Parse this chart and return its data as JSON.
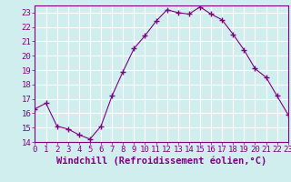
{
  "x": [
    0,
    1,
    2,
    3,
    4,
    5,
    6,
    7,
    8,
    9,
    10,
    11,
    12,
    13,
    14,
    15,
    16,
    17,
    18,
    19,
    20,
    21,
    22,
    23
  ],
  "y": [
    16.3,
    16.7,
    15.1,
    14.9,
    14.5,
    14.2,
    15.1,
    17.2,
    18.9,
    20.5,
    21.4,
    22.4,
    23.2,
    23.0,
    22.9,
    23.4,
    22.9,
    22.5,
    21.5,
    20.4,
    19.1,
    18.5,
    17.2,
    15.9
  ],
  "xlim": [
    0,
    23
  ],
  "ylim": [
    14.0,
    23.5
  ],
  "yticks": [
    14,
    15,
    16,
    17,
    18,
    19,
    20,
    21,
    22,
    23
  ],
  "xticks": [
    0,
    1,
    2,
    3,
    4,
    5,
    6,
    7,
    8,
    9,
    10,
    11,
    12,
    13,
    14,
    15,
    16,
    17,
    18,
    19,
    20,
    21,
    22,
    23
  ],
  "xlabel": "Windchill (Refroidissement éolien,°C)",
  "line_color": "#800080",
  "marker": "+",
  "bg_color": "#d0eeee",
  "grid_color": "#b8dada",
  "tick_label_fontsize": 6.5,
  "xlabel_fontsize": 7.5
}
